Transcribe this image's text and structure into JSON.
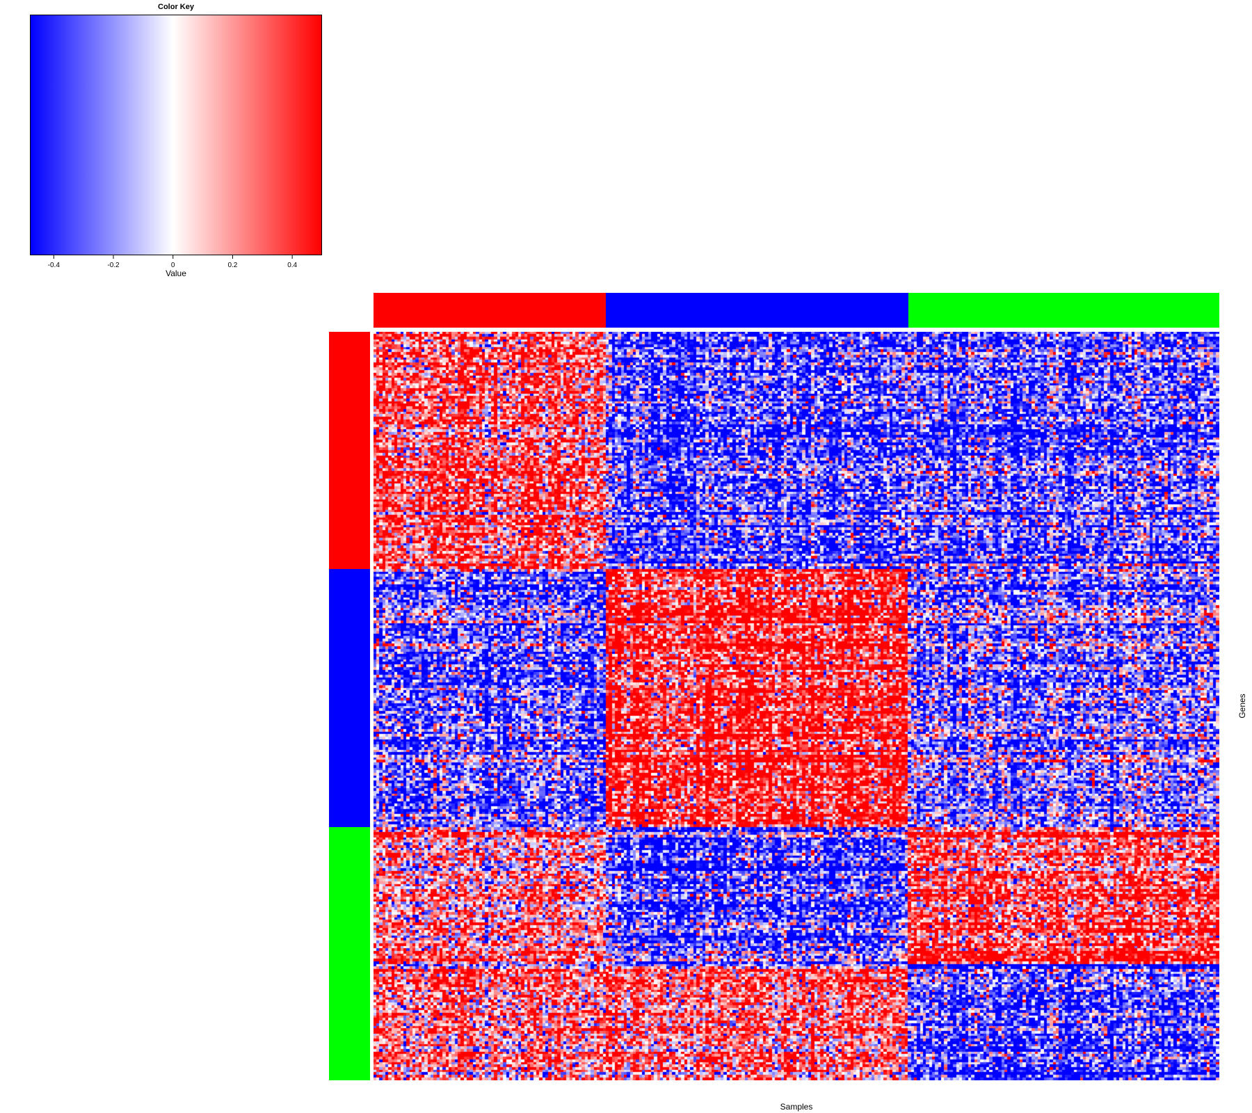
{
  "chart_data": {
    "type": "heatmap",
    "color_key": {
      "title": "Color Key",
      "xlabel": "Value",
      "range": [
        -0.48,
        0.5
      ],
      "ticks": [
        -0.4,
        -0.2,
        0,
        0.2,
        0.4
      ],
      "tick_labels": [
        "-0.4",
        "-0.2",
        "0",
        "0.2",
        "0.4"
      ],
      "colors": {
        "low": "#0000ff",
        "mid": "#ffffff",
        "high": "#ff0000"
      }
    },
    "xlabel": "Samples",
    "ylabel": "Genes",
    "n_samples": 280,
    "n_genes": 290,
    "sample_groups": [
      {
        "color": "#ff0000",
        "count": 77
      },
      {
        "color": "#0000ff",
        "count": 100
      },
      {
        "color": "#00ff00",
        "count": 103
      }
    ],
    "gene_groups": [
      {
        "color": "#ff0000",
        "count": 92
      },
      {
        "color": "#0000ff",
        "count": 100
      },
      {
        "color": "#00ff00",
        "count": 98
      }
    ],
    "block_means": [
      [
        0.35,
        -0.35,
        -0.3
      ],
      [
        -0.3,
        0.4,
        -0.25
      ],
      [
        0.2,
        -0.35,
        0.35
      ],
      [
        0.25,
        0.25,
        -0.35
      ]
    ],
    "block_gene_rows": [
      0,
      92,
      192,
      245,
      290
    ]
  }
}
